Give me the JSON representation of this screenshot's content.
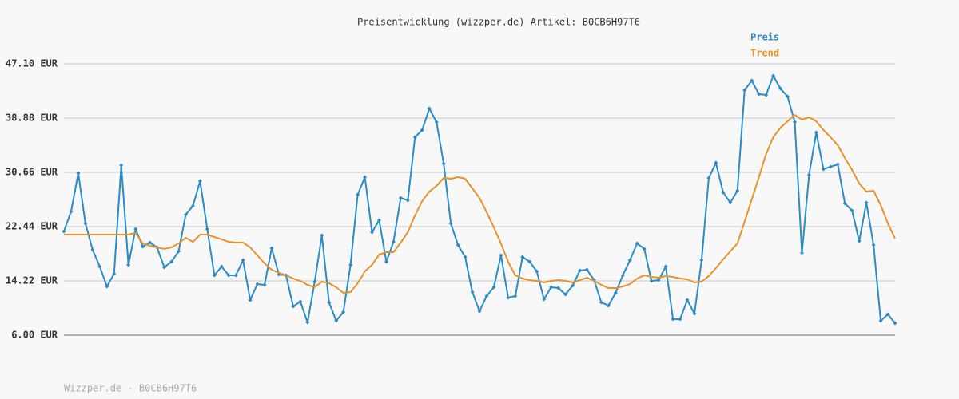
{
  "chart_data": {
    "type": "line",
    "title": "Preisentwicklung (wizzper.de) Artikel: B0CB6H97T6",
    "footer": "Wizzper.de - B0CB6H97T6",
    "ylim": [
      6.0,
      47.1
    ],
    "yticks": [
      {
        "value": 6.0,
        "label": "6.00 EUR"
      },
      {
        "value": 14.22,
        "label": "14.22 EUR"
      },
      {
        "value": 22.44,
        "label": "22.44 EUR"
      },
      {
        "value": 30.66,
        "label": "30.66 EUR"
      },
      {
        "value": 38.88,
        "label": "38.88 EUR"
      },
      {
        "value": 47.1,
        "label": "47.10 EUR"
      }
    ],
    "grid": true,
    "series": [
      {
        "name": "Preis",
        "color": "#2a8bc6",
        "markers": true,
        "values": [
          21.72,
          24.74,
          30.54,
          22.92,
          18.93,
          16.4,
          13.37,
          15.31,
          31.75,
          16.64,
          22.08,
          19.42,
          20.02,
          19.3,
          16.28,
          17.12,
          18.69,
          24.25,
          25.58,
          29.33,
          22.08,
          15.07,
          16.4,
          15.07,
          15.07,
          17.36,
          11.32,
          13.74,
          13.62,
          19.18,
          15.19,
          15.07,
          10.35,
          11.08,
          7.93,
          14.1,
          21.11,
          10.96,
          8.18,
          9.51,
          16.64,
          27.28,
          29.94,
          21.59,
          23.41,
          17.12,
          20.14,
          26.79,
          26.43,
          35.98,
          37.07,
          40.33,
          38.28,
          31.99,
          22.92,
          19.66,
          17.85,
          12.53,
          9.63,
          11.92,
          13.25,
          18.09,
          11.68,
          11.92,
          17.85,
          17.12,
          15.67,
          11.44,
          13.25,
          13.13,
          12.17,
          13.5,
          15.79,
          15.91,
          14.34,
          10.96,
          10.47,
          12.41,
          15.07,
          17.36,
          19.9,
          19.06,
          14.22,
          14.34,
          16.4,
          8.42,
          8.42,
          11.32,
          9.26,
          17.36,
          29.81,
          32.11,
          27.64,
          26.07,
          27.88,
          43.11,
          44.56,
          42.51,
          42.39,
          45.29,
          43.35,
          42.14,
          38.28,
          18.45,
          30.3,
          36.7,
          31.14,
          31.51,
          31.87,
          25.95,
          24.86,
          20.26,
          26.07,
          19.66,
          8.18,
          9.14,
          7.81
        ]
      },
      {
        "name": "Trend",
        "color": "#e8922a",
        "markers": false,
        "values": [
          21.23,
          21.23,
          21.23,
          21.23,
          21.23,
          21.23,
          21.23,
          21.23,
          21.23,
          21.23,
          21.47,
          19.9,
          19.54,
          19.3,
          19.06,
          19.3,
          19.9,
          20.75,
          20.14,
          21.23,
          21.23,
          20.87,
          20.51,
          20.14,
          20.02,
          20.02,
          19.3,
          18.09,
          16.88,
          15.91,
          15.43,
          15.07,
          14.58,
          14.22,
          13.62,
          13.25,
          14.1,
          13.86,
          13.25,
          12.41,
          12.53,
          13.86,
          15.67,
          16.64,
          18.21,
          18.57,
          18.57,
          20.02,
          21.59,
          24.13,
          26.31,
          27.76,
          28.61,
          29.81,
          29.69,
          29.94,
          29.69,
          28.24,
          26.79,
          24.62,
          22.32,
          19.9,
          17.12,
          15.07,
          14.58,
          14.34,
          14.22,
          13.98,
          14.22,
          14.34,
          14.22,
          13.98,
          14.34,
          14.7,
          14.22,
          13.62,
          13.13,
          13.13,
          13.37,
          13.74,
          14.58,
          15.07,
          14.82,
          14.7,
          14.95,
          14.82,
          14.58,
          14.46,
          13.98,
          14.1,
          14.95,
          16.15,
          17.48,
          18.69,
          19.9,
          23.17,
          26.55,
          29.94,
          33.44,
          35.98,
          37.43,
          38.4,
          39.36,
          38.64,
          39.0,
          38.4,
          37.07,
          35.98,
          34.77,
          32.84,
          31.02,
          28.97,
          27.76,
          27.88,
          25.7,
          22.92,
          20.63
        ]
      }
    ]
  }
}
